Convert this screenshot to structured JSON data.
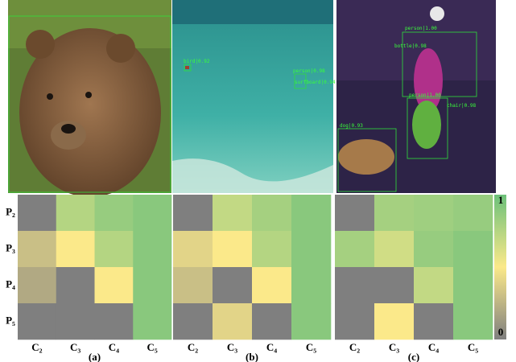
{
  "detections": {
    "b": [
      "bird|0.92",
      "person|0.98",
      "surfboard|0.94"
    ],
    "c": [
      "person|1.00",
      "bottle|0.98",
      "person|1.00",
      "chair|0.98",
      "dog|0.93"
    ]
  },
  "rows": [
    "P₂",
    "P₃",
    "P₄",
    "P₅"
  ],
  "columns": [
    "C₂",
    "C₃",
    "C₄",
    "C₅"
  ],
  "panels": [
    {
      "label": "(a)",
      "values": [
        [
          0,
          0.75,
          0.85,
          0.9
        ],
        [
          0.3,
          0.5,
          0.75,
          0.9
        ],
        [
          0.2,
          0,
          0.5,
          0.9
        ],
        [
          0,
          0,
          0,
          0.9
        ]
      ]
    },
    {
      "label": "(b)",
      "values": [
        [
          0,
          0.7,
          0.8,
          0.9
        ],
        [
          0.4,
          0.5,
          0.75,
          0.9
        ],
        [
          0.3,
          0,
          0.5,
          0.9
        ],
        [
          0,
          0.4,
          0,
          0.9
        ]
      ]
    },
    {
      "label": "(c)",
      "values": [
        [
          0,
          0.8,
          0.82,
          0.85
        ],
        [
          0.8,
          0.65,
          0.85,
          0.9
        ],
        [
          0,
          0,
          0.7,
          0.9
        ],
        [
          0,
          0.5,
          0,
          0.9
        ]
      ]
    }
  ],
  "colorbar": {
    "ticks": [
      0,
      1
    ],
    "colors": [
      "#7f7f7f",
      "#fbe98a",
      "#6cc07a"
    ]
  }
}
